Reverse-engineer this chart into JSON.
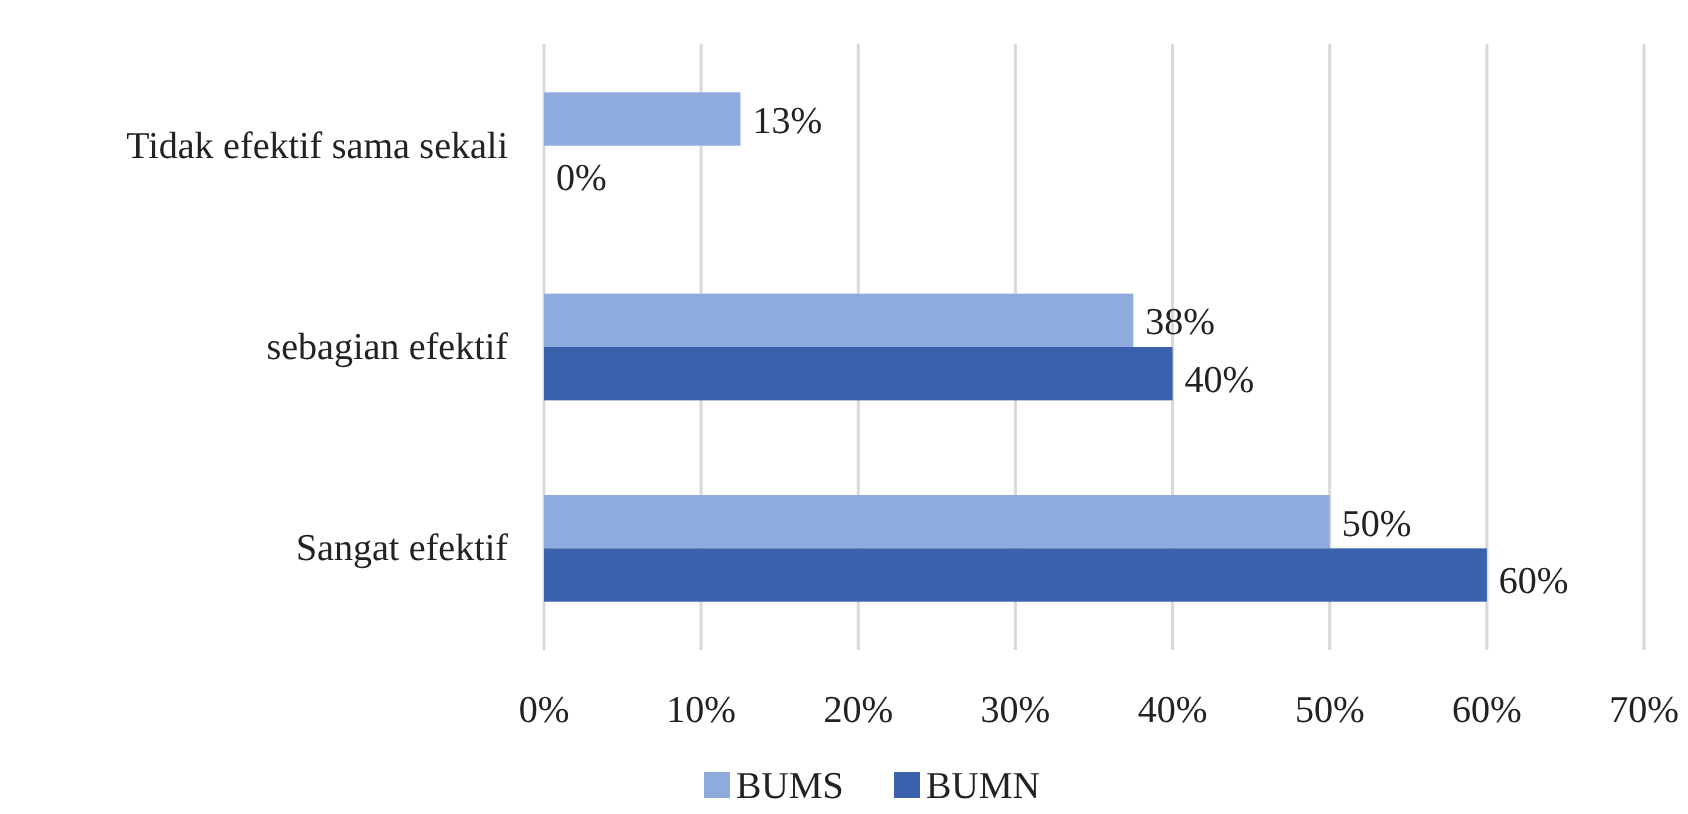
{
  "chart_data": {
    "type": "bar",
    "orientation": "horizontal",
    "categories": [
      "Tidak efektif sama sekali",
      "sebagian efektif",
      "Sangat efektif"
    ],
    "series": [
      {
        "name": "BUMS",
        "color": "#8faadc",
        "values": [
          12.5,
          37.5,
          50
        ],
        "value_labels": [
          "13%",
          "38%",
          "50%"
        ]
      },
      {
        "name": "BUMN",
        "color": "#3a62ac",
        "values": [
          0,
          40,
          60
        ],
        "value_labels": [
          "0%",
          "40%",
          "60%"
        ]
      }
    ],
    "xlim": [
      0,
      70
    ],
    "xticks": [
      {
        "value": 0,
        "label": "0%"
      },
      {
        "value": 10,
        "label": "10%"
      },
      {
        "value": 20,
        "label": "20%"
      },
      {
        "value": 30,
        "label": "30%"
      },
      {
        "value": 40,
        "label": "40%"
      },
      {
        "value": 50,
        "label": "50%"
      },
      {
        "value": 60,
        "label": "60%"
      },
      {
        "value": 70,
        "label": "70%"
      }
    ],
    "grid": "x",
    "legend": "bottom"
  }
}
